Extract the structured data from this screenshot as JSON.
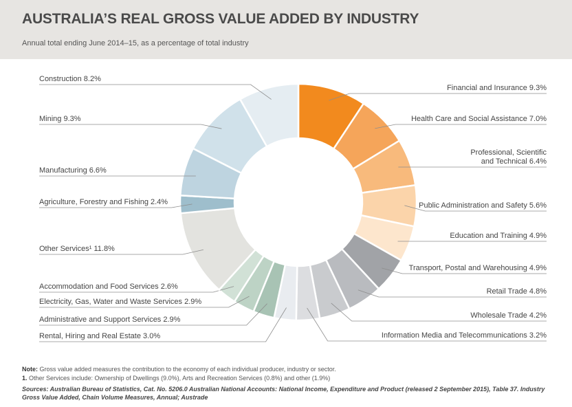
{
  "header": {
    "title": "AUSTRALIA’S REAL GROSS VALUE ADDED BY INDUSTRY",
    "subtitle": "Annual total ending June 2014–15, as a percentage of total industry"
  },
  "chart_data": {
    "type": "pie",
    "donut": true,
    "unit": "%",
    "slices": [
      {
        "label": "Financial and Insurance 9.3%",
        "name": "Financial and Insurance",
        "value": 9.3,
        "color": "#f28a1e"
      },
      {
        "label": "Health Care and Social Assistance 7.0%",
        "name": "Health Care and Social Assistance",
        "value": 7.0,
        "color": "#f5a55a"
      },
      {
        "label": "Professional, Scientific|and Technical 6.4%",
        "name": "Professional, Scientific and Technical",
        "value": 6.4,
        "color": "#f8ba7c"
      },
      {
        "label": "Public Administration and Safety 5.6%",
        "name": "Public Administration and Safety",
        "value": 5.6,
        "color": "#fbd4aa"
      },
      {
        "label": "Education and Training 4.9%",
        "name": "Education and Training",
        "value": 4.9,
        "color": "#fde6cd"
      },
      {
        "label": "Transport, Postal and Warehousing 4.9%",
        "name": "Transport, Postal and Warehousing",
        "value": 4.9,
        "color": "#a1a3a7"
      },
      {
        "label": "Retail Trade  4.8%",
        "name": "Retail Trade",
        "value": 4.8,
        "color": "#b9bbbf"
      },
      {
        "label": "Wholesale Trade 4.2%",
        "name": "Wholesale Trade",
        "value": 4.2,
        "color": "#c9cbce"
      },
      {
        "label": "Information Media and Telecommunications 3.2%",
        "name": "Information Media and Telecommunications",
        "value": 3.2,
        "color": "#dcdde0"
      },
      {
        "label": "Rental, Hiring and Real Estate 3.0%",
        "name": "Rental, Hiring and Real Estate",
        "value": 3.0,
        "color": "#e9ecf0"
      },
      {
        "label": "Administrative and Support Services 2.9%",
        "name": "Administrative and Support Services",
        "value": 2.9,
        "color": "#a8c3b4"
      },
      {
        "label": "Electricity, Gas, Water and Waste Services 2.9%",
        "name": "Electricity, Gas, Water and Waste Services",
        "value": 2.9,
        "color": "#bdd3c5"
      },
      {
        "label": "Accommodation and Food Services 2.6%",
        "name": "Accommodation and Food Services",
        "value": 2.6,
        "color": "#d1e1d6"
      },
      {
        "label": "Other Services¹  11.8%",
        "name": "Other Services",
        "value": 11.8,
        "color": "#e3e3df"
      },
      {
        "label": "Agriculture, Forestry and Fishing 2.4%",
        "name": "Agriculture, Forestry and Fishing",
        "value": 2.4,
        "color": "#9ebecc"
      },
      {
        "label": "Manufacturing 6.6%",
        "name": "Manufacturing",
        "value": 6.6,
        "color": "#bed4e0"
      },
      {
        "label": "Mining 9.3%",
        "name": "Mining",
        "value": 9.3,
        "color": "#d0e1ea"
      },
      {
        "label": "Construction 8.2%",
        "name": "Construction",
        "value": 8.2,
        "color": "#e5edf2"
      }
    ]
  },
  "notes": {
    "note_label": "Note:",
    "note_text": " Gross value added measures the contribution to the economy of each individual producer, industry or sector.",
    "footnote_label": "1.",
    "footnote_text": " Other Services include: Ownership of Dwellings (9.0%), Arts and Recreation Services (0.8%) and other (1.9%)",
    "sources": "Sources: Australian Bureau of Statistics, Cat. No. 5206.0 Australian National Accounts: National Income, Expenditure and Product (released 2 September 2015), Table 37. Industry Gross Value Added, Chain Volume Measures, Annual; Austrade"
  }
}
